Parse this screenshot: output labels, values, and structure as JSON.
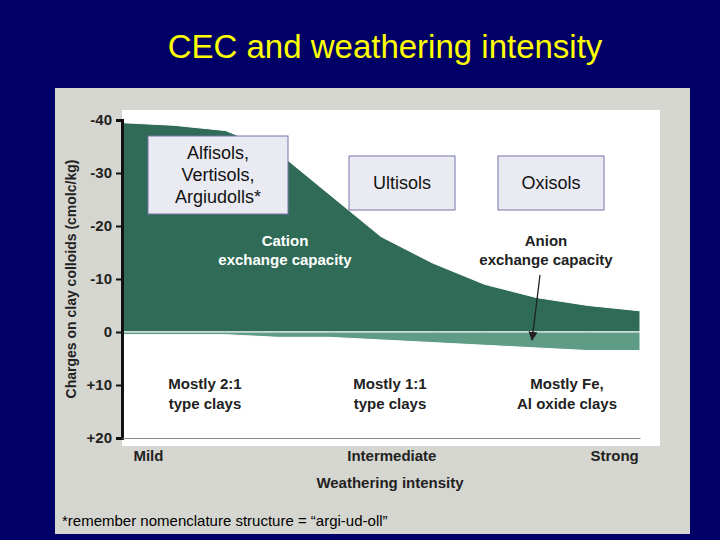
{
  "title": "CEC and weathering intensity",
  "soil_orders": [
    [
      "Alfisols,",
      "Vertisols,",
      "Argiudolls*"
    ],
    [
      "Ultisols"
    ],
    [
      "Oxisols"
    ]
  ],
  "footnote": "*remember nomenclature structure = “argi-ud-oll”",
  "chart_data": {
    "type": "area",
    "x": [
      0,
      1,
      2,
      3,
      4,
      5,
      6,
      7,
      8,
      9,
      10
    ],
    "xlim": [
      0,
      10
    ],
    "xticks": [
      {
        "value": 0.5,
        "label": "Mild"
      },
      {
        "value": 5.2,
        "label": "Intermediate"
      },
      {
        "value": 9.5,
        "label": "Strong"
      }
    ],
    "xlabel": "Weathering intensity",
    "ylabel": "Charges on clay colloids (cmolc/kg)",
    "ylim": [
      -40,
      20
    ],
    "yticks": [
      -40,
      -30,
      -20,
      -10,
      0,
      {
        "value": 10,
        "label": "+10"
      },
      {
        "value": 20,
        "label": "+20"
      }
    ],
    "series": [
      {
        "name": "Cation exchange capacity",
        "color": "#2f6b56",
        "values": [
          -39.5,
          -39,
          -38,
          -34,
          -26,
          -18,
          -13,
          -9,
          -6.5,
          -5,
          -4
        ]
      },
      {
        "name": "Anion exchange capacity",
        "color": "#5f9c86",
        "values": [
          0.5,
          0.5,
          0.5,
          1,
          1,
          1.5,
          2,
          2.5,
          3,
          3.5,
          3.5
        ]
      }
    ],
    "annotations": [
      [
        "Mostly 2:1",
        "type clays"
      ],
      [
        "Mostly 1:1",
        "type clays"
      ],
      [
        "Mostly Fe,",
        "Al oxide clays"
      ]
    ]
  }
}
